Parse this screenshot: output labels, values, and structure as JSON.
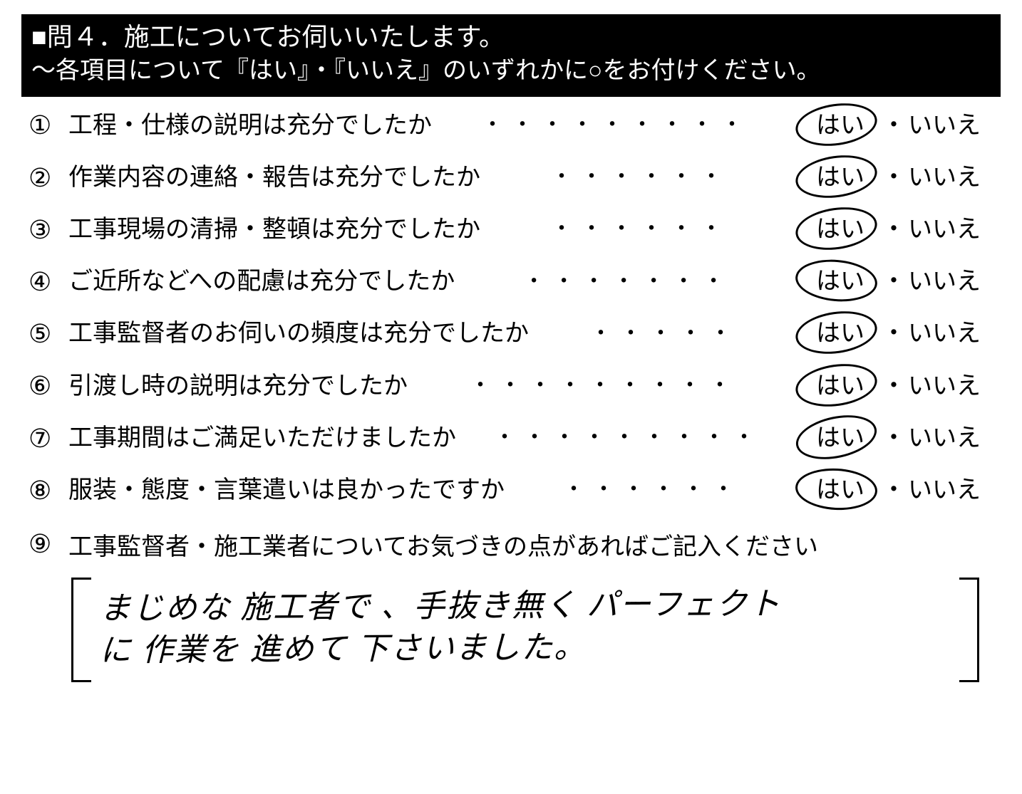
{
  "header": {
    "line1": "■問４．施工についてお伺いいたします。",
    "line2": "～各項目について『はい』・『いいえ』のいずれかに○をお付けください。"
  },
  "yes_label": "はい",
  "no_label": "いいえ",
  "separator": "・",
  "questions": [
    {
      "num": "①",
      "text": "工程・仕様の説明は充分でしたか",
      "circled": "yes"
    },
    {
      "num": "②",
      "text": "作業内容の連絡・報告は充分でしたか",
      "circled": "yes"
    },
    {
      "num": "③",
      "text": "工事現場の清掃・整頓は充分でしたか",
      "circled": "yes"
    },
    {
      "num": "④",
      "text": "ご近所などへの配慮は充分でしたか",
      "circled": "yes"
    },
    {
      "num": "⑤",
      "text": "工事監督者のお伺いの頻度は充分でしたか",
      "circled": "yes"
    },
    {
      "num": "⑥",
      "text": "引渡し時の説明は充分でしたか",
      "circled": "yes"
    },
    {
      "num": "⑦",
      "text": "工事期間はご満足いただけましたか",
      "circled": "yes"
    },
    {
      "num": "⑧",
      "text": "服装・態度・言葉遣いは良かったですか",
      "circled": "yes"
    }
  ],
  "question9": {
    "num": "⑨",
    "text": "工事監督者・施工業者についてお気づきの点があればご記入ください"
  },
  "freeform": {
    "line1": "まじめな 施工者で 、手抜き無く パーフェクト",
    "line2": "に 作業を 進めて 下さいました。"
  },
  "colors": {
    "header_bg": "#000000",
    "header_fg": "#ffffff",
    "text": "#000000",
    "page_bg": "#ffffff"
  },
  "typography": {
    "header_fontsize_pt": 27,
    "body_fontsize_pt": 26,
    "handwriting_fontsize_pt": 33
  }
}
